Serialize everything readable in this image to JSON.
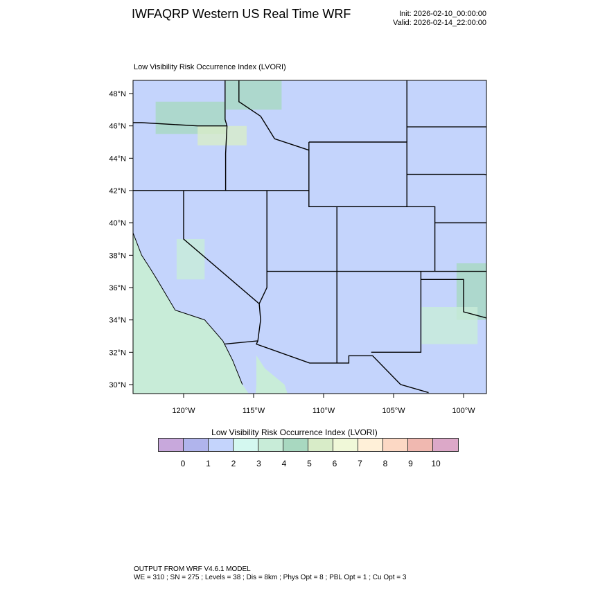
{
  "header": {
    "title": "IWFAQRP Western US Real Time WRF",
    "init": "Init: 2026-02-10_00:00:00",
    "valid": "Valid: 2026-02-14_22:00:00"
  },
  "map": {
    "subtitle": "Low Visibility Risk Occurrence Index   (LVORI)",
    "lat_ticks": [
      "48°N",
      "46°N",
      "44°N",
      "42°N",
      "40°N",
      "38°N",
      "36°N",
      "34°N",
      "32°N",
      "30°N"
    ],
    "lon_ticks": [
      "120°W",
      "115°W",
      "110°W",
      "105°W",
      "100°W"
    ],
    "dominant_level": 2,
    "ocean_color": "#c8ecd8"
  },
  "colorbar": {
    "title": "Low Visibility Risk Occurrence Index  (LVORI)",
    "colors": [
      "#c8a8dc",
      "#b0b4ec",
      "#c4d4fc",
      "#d4f8f0",
      "#c8ecd8",
      "#a8d8c0",
      "#d8ecc8",
      "#f0f8d8",
      "#fff0d8",
      "#fcd8c4",
      "#f0b8b0",
      "#dca8c8"
    ],
    "labels": [
      "0",
      "1",
      "2",
      "3",
      "4",
      "5",
      "6",
      "7",
      "8",
      "9",
      "10"
    ]
  },
  "footer": {
    "line1": "OUTPUT FROM WRF V4.6.1 MODEL",
    "line2": "WE = 310 ; SN = 275 ; Levels = 38 ; Dis = 8km ; Phys Opt = 8 ; PBL Opt = 1 ; Cu Opt = 3"
  }
}
